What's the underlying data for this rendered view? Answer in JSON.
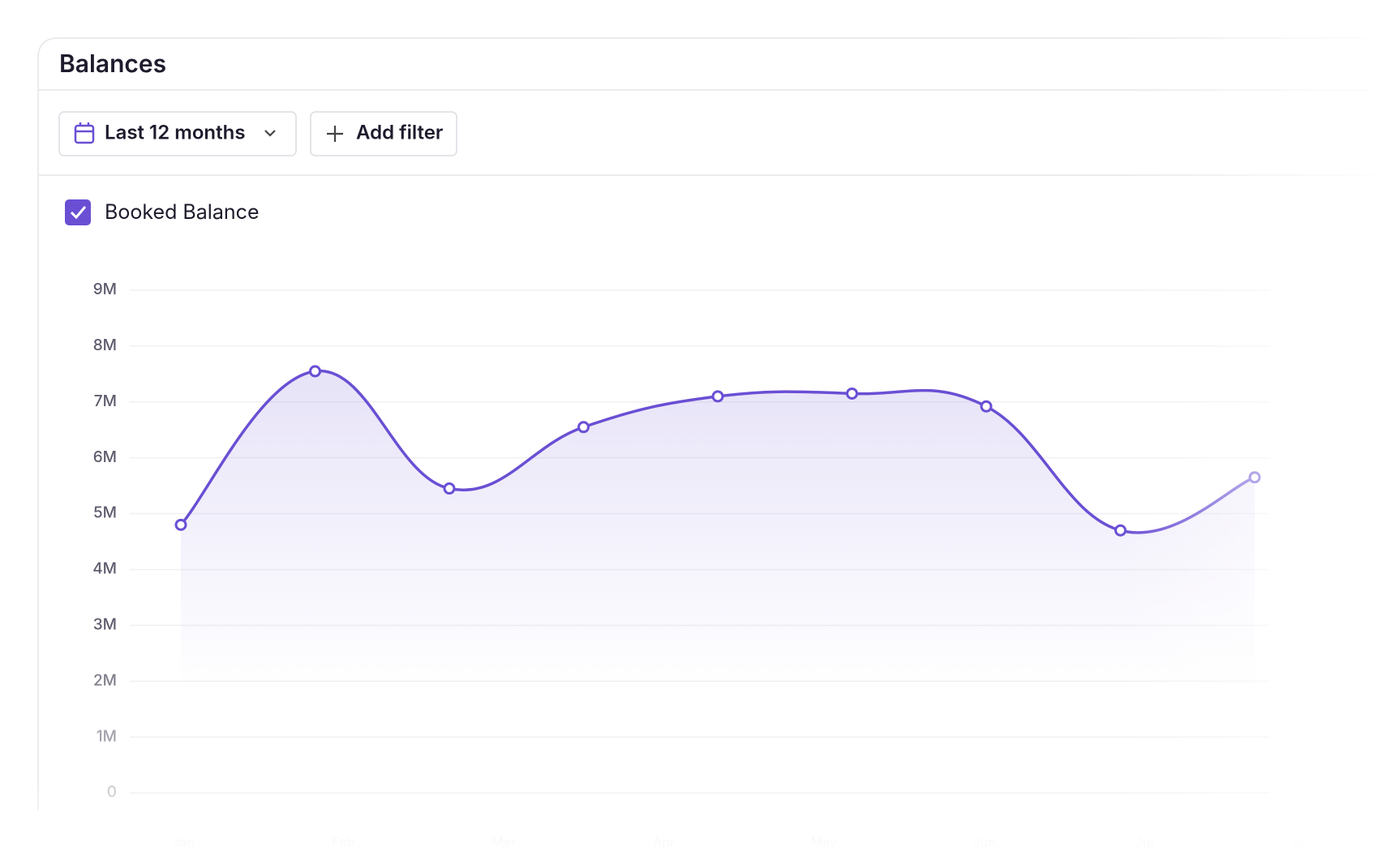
{
  "header": {
    "title": "Balances"
  },
  "filters": {
    "range": "Last 12 months",
    "add": "Add filter"
  },
  "chart_data": {
    "type": "line",
    "categories": [
      null,
      null,
      null,
      null,
      null,
      null,
      null,
      null,
      null
    ],
    "series": [
      {
        "name": "Booked Balance",
        "color": "#6a4fd4",
        "values": [
          4800000,
          7550000,
          5450000,
          6550000,
          7100000,
          7150000,
          6920000,
          4700000,
          5650000
        ]
      }
    ],
    "ylim": [
      0,
      9000000
    ],
    "yticks": [
      0,
      {
        "value": 1000000,
        "label": "1M"
      },
      {
        "value": 2000000,
        "label": "2M"
      },
      {
        "value": 3000000,
        "label": "3M"
      },
      {
        "value": 4000000,
        "label": "4M"
      },
      {
        "value": 5000000,
        "label": "5M"
      },
      {
        "value": 6000000,
        "label": "6M"
      },
      {
        "value": 7000000,
        "label": "7M"
      },
      {
        "value": 8000000,
        "label": "8M"
      },
      {
        "value": 9000000,
        "label": "9M"
      }
    ],
    "x_labels_faded": [
      "Jan",
      "Feb",
      "Mar",
      "Apr",
      "May",
      "Jun",
      "Jul",
      "Aug"
    ],
    "grid": true
  }
}
